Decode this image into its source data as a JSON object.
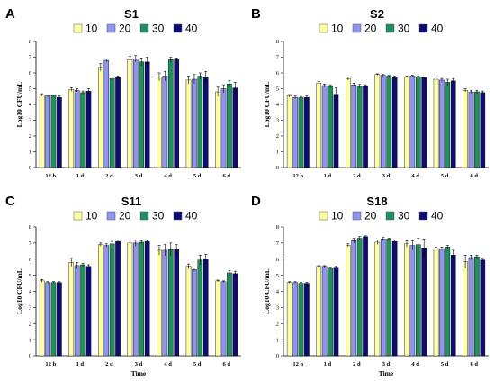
{
  "chart_data": [
    {
      "type": "bar",
      "panel": "A",
      "title": "S1",
      "categories": [
        "12 h",
        "1 d",
        "2 d",
        "3 d",
        "4 d",
        "5 d",
        "6 d"
      ],
      "xlabel": "",
      "ylabel": "Log10 CFU/mL",
      "ylim": [
        0,
        8
      ],
      "yticks": [
        0,
        1,
        2,
        3,
        4,
        5,
        6,
        7,
        8
      ],
      "legend_position": "top",
      "series": [
        {
          "name": "10",
          "values": [
            4.6,
            4.95,
            6.35,
            6.85,
            5.75,
            5.55,
            4.8
          ],
          "errors": [
            0.08,
            0.12,
            0.25,
            0.2,
            0.25,
            0.25,
            0.3
          ]
        },
        {
          "name": "20",
          "values": [
            4.55,
            4.9,
            6.8,
            6.9,
            5.8,
            5.6,
            5.0
          ],
          "errors": [
            0.06,
            0.1,
            0.1,
            0.2,
            0.3,
            0.3,
            0.25
          ]
        },
        {
          "name": "30",
          "values": [
            4.55,
            4.75,
            5.65,
            6.7,
            6.85,
            5.8,
            5.3
          ],
          "errors": [
            0.06,
            0.1,
            0.08,
            0.25,
            0.15,
            0.2,
            0.2
          ]
        },
        {
          "name": "40",
          "values": [
            4.45,
            4.85,
            5.7,
            6.7,
            6.85,
            5.75,
            5.05
          ],
          "errors": [
            0.1,
            0.15,
            0.1,
            0.3,
            0.1,
            0.35,
            0.35
          ]
        }
      ]
    },
    {
      "type": "bar",
      "panel": "B",
      "title": "S2",
      "categories": [
        "12 h",
        "1 d",
        "2 d",
        "3 d",
        "4 d",
        "5 d",
        "6 d"
      ],
      "xlabel": "",
      "ylabel": "Log10 CFU/mL",
      "ylim": [
        0,
        8
      ],
      "yticks": [
        0,
        1,
        2,
        3,
        4,
        5,
        6,
        7,
        8
      ],
      "legend_position": "top",
      "series": [
        {
          "name": "10",
          "values": [
            4.55,
            5.35,
            5.65,
            5.9,
            5.75,
            5.6,
            4.9
          ],
          "errors": [
            0.08,
            0.12,
            0.1,
            0.05,
            0.05,
            0.15,
            0.1
          ]
        },
        {
          "name": "20",
          "values": [
            4.45,
            5.2,
            5.25,
            5.85,
            5.8,
            5.55,
            4.8
          ],
          "errors": [
            0.08,
            0.1,
            0.1,
            0.05,
            0.05,
            0.1,
            0.1
          ]
        },
        {
          "name": "30",
          "values": [
            4.45,
            5.15,
            5.15,
            5.8,
            5.75,
            5.4,
            4.8
          ],
          "errors": [
            0.06,
            0.1,
            0.12,
            0.05,
            0.05,
            0.2,
            0.1
          ]
        },
        {
          "name": "40",
          "values": [
            4.45,
            4.65,
            5.15,
            5.7,
            5.7,
            5.5,
            4.75
          ],
          "errors": [
            0.08,
            0.4,
            0.1,
            0.1,
            0.05,
            0.15,
            0.1
          ]
        }
      ]
    },
    {
      "type": "bar",
      "panel": "C",
      "title": "S11",
      "categories": [
        "12 h",
        "1 d",
        "2 d",
        "3 d",
        "4 d",
        "5 d",
        "6 d"
      ],
      "xlabel": "Time",
      "ylabel": "Log10 CFU/mL",
      "ylim": [
        0,
        8
      ],
      "yticks": [
        0,
        1,
        2,
        3,
        4,
        5,
        6,
        7,
        8
      ],
      "legend_position": "top",
      "series": [
        {
          "name": "10",
          "values": [
            4.65,
            5.8,
            6.9,
            7.0,
            6.55,
            5.55,
            4.65
          ],
          "errors": [
            0.08,
            0.25,
            0.1,
            0.2,
            0.3,
            0.15,
            0.05
          ]
        },
        {
          "name": "20",
          "values": [
            4.55,
            5.6,
            6.85,
            7.0,
            6.55,
            5.35,
            4.6
          ],
          "errors": [
            0.06,
            0.2,
            0.1,
            0.2,
            0.35,
            0.1,
            0.05
          ]
        },
        {
          "name": "30",
          "values": [
            4.55,
            5.65,
            6.95,
            7.05,
            6.6,
            5.95,
            5.15
          ],
          "errors": [
            0.06,
            0.1,
            0.15,
            0.1,
            0.4,
            0.3,
            0.15
          ]
        },
        {
          "name": "40",
          "values": [
            4.55,
            5.55,
            7.1,
            7.1,
            6.6,
            6.0,
            5.1
          ],
          "errors": [
            0.05,
            0.1,
            0.1,
            0.1,
            0.3,
            0.3,
            0.15
          ]
        }
      ]
    },
    {
      "type": "bar",
      "panel": "D",
      "title": "S18",
      "categories": [
        "12 h",
        "1 d",
        "2 d",
        "3 d",
        "4 d",
        "5 d",
        "6 d"
      ],
      "xlabel": "Time",
      "ylabel": "Log10 CFU/mL",
      "ylim": [
        0,
        8
      ],
      "yticks": [
        0,
        1,
        2,
        3,
        4,
        5,
        6,
        7,
        8
      ],
      "legend_position": "top",
      "series": [
        {
          "name": "10",
          "values": [
            4.55,
            5.55,
            6.85,
            7.05,
            6.95,
            6.65,
            5.85
          ],
          "errors": [
            0.05,
            0.05,
            0.1,
            0.15,
            0.2,
            0.1,
            0.4
          ]
        },
        {
          "name": "20",
          "values": [
            4.55,
            5.55,
            7.15,
            7.25,
            6.85,
            6.65,
            6.1
          ],
          "errors": [
            0.05,
            0.05,
            0.15,
            0.1,
            0.3,
            0.1,
            0.15
          ]
        },
        {
          "name": "30",
          "values": [
            4.5,
            5.45,
            7.3,
            7.25,
            6.9,
            6.75,
            6.15
          ],
          "errors": [
            0.05,
            0.05,
            0.1,
            0.05,
            0.4,
            0.1,
            0.1
          ]
        },
        {
          "name": "40",
          "values": [
            4.5,
            5.5,
            7.4,
            7.1,
            6.7,
            6.25,
            5.95
          ],
          "errors": [
            0.05,
            0.05,
            0.05,
            0.1,
            0.55,
            0.3,
            0.1
          ]
        }
      ]
    }
  ],
  "colors": {
    "10": "#ffffa6",
    "20": "#8f95ee",
    "30": "#1f8f5f",
    "40": "#0c0c73",
    "edge": "#000000",
    "error": "#000000"
  }
}
